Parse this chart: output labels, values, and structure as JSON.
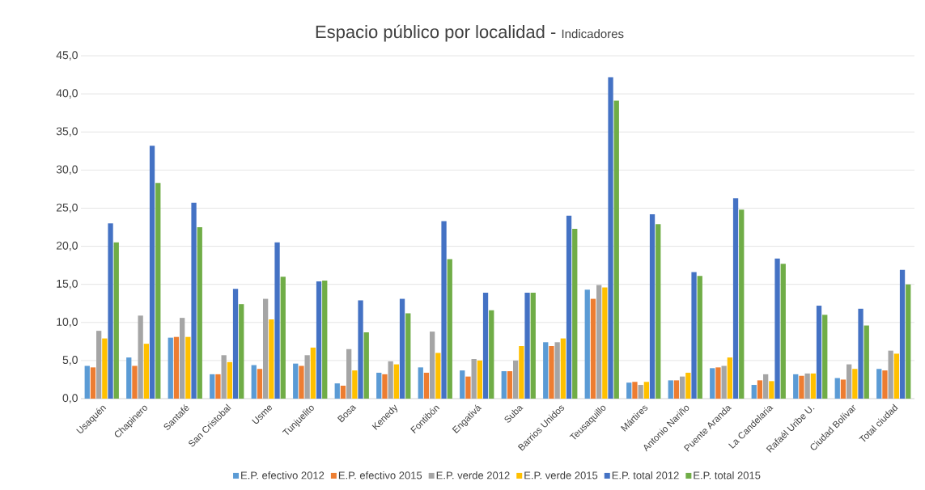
{
  "chart_data": {
    "type": "bar",
    "title": "Espacio público por localidad -",
    "subtitle": "Indicadores",
    "categories": [
      "Usaquén",
      "Chapinero",
      "Santafé",
      "San Cristobal",
      "Usme",
      "Tunjuelito",
      "Bosa",
      "Kenedy",
      "Fontibón",
      "Engativá",
      "Suba",
      "Barrios Unidos",
      "Teusaquillo",
      "Mártires",
      "Antonio Nariño",
      "Puente Aranda",
      "La Candelaria",
      "Rafaél Uribe U.",
      "Ciudad Bolívar",
      "Total ciudad"
    ],
    "series": [
      {
        "name": "E.P. efectivo 2012",
        "color": "#5b9bd5",
        "values": [
          4.3,
          5.4,
          8.0,
          3.2,
          4.4,
          4.6,
          2.0,
          3.4,
          4.1,
          3.7,
          3.6,
          7.4,
          14.3,
          2.1,
          2.4,
          4.0,
          1.8,
          3.2,
          2.7,
          3.9
        ]
      },
      {
        "name": "E.P. efectivo 2015",
        "color": "#ed7d31",
        "values": [
          4.1,
          4.3,
          8.1,
          3.2,
          3.9,
          4.3,
          1.7,
          3.2,
          3.4,
          2.9,
          3.6,
          6.9,
          13.1,
          2.2,
          2.4,
          4.1,
          2.4,
          3.0,
          2.5,
          3.7
        ]
      },
      {
        "name": "E.P. verde 2012",
        "color": "#a5a5a5",
        "values": [
          8.9,
          10.9,
          10.6,
          5.7,
          13.1,
          5.7,
          6.5,
          4.9,
          8.8,
          5.2,
          5.0,
          7.4,
          14.9,
          1.8,
          2.9,
          4.3,
          3.2,
          3.3,
          4.5,
          6.3
        ]
      },
      {
        "name": "E.P. verde 2015",
        "color": "#ffc000",
        "values": [
          7.9,
          7.2,
          8.1,
          4.8,
          10.4,
          6.7,
          3.7,
          4.5,
          6.0,
          5.0,
          6.9,
          7.9,
          14.6,
          2.2,
          3.4,
          5.4,
          2.3,
          3.3,
          3.9,
          5.9
        ]
      },
      {
        "name": "E.P. total 2012",
        "color": "#4472c4",
        "values": [
          23.0,
          33.2,
          25.7,
          14.4,
          20.5,
          15.4,
          12.9,
          13.1,
          23.3,
          13.9,
          13.9,
          24.0,
          42.2,
          24.2,
          16.6,
          26.3,
          18.4,
          12.2,
          11.8,
          16.9
        ]
      },
      {
        "name": "E.P. total 2015",
        "color": "#70ad47",
        "values": [
          20.5,
          28.3,
          22.5,
          12.4,
          16.0,
          15.5,
          8.7,
          11.2,
          18.3,
          11.6,
          13.9,
          22.3,
          39.1,
          22.9,
          16.1,
          24.8,
          17.7,
          11.0,
          9.6,
          15.0
        ]
      }
    ],
    "ylim": [
      0,
      45
    ],
    "yticks": [
      {
        "value": 0,
        "label": "0,0"
      },
      {
        "value": 5,
        "label": "5,0"
      },
      {
        "value": 10,
        "label": "10,0"
      },
      {
        "value": 15,
        "label": "15,0"
      },
      {
        "value": 20,
        "label": "20,0"
      },
      {
        "value": 25,
        "label": "25,0"
      },
      {
        "value": 30,
        "label": "30,0"
      },
      {
        "value": 35,
        "label": "35,0"
      },
      {
        "value": 40,
        "label": "40,0"
      },
      {
        "value": 45,
        "label": "45,0"
      }
    ],
    "grid": "y",
    "legend": "bottom"
  }
}
